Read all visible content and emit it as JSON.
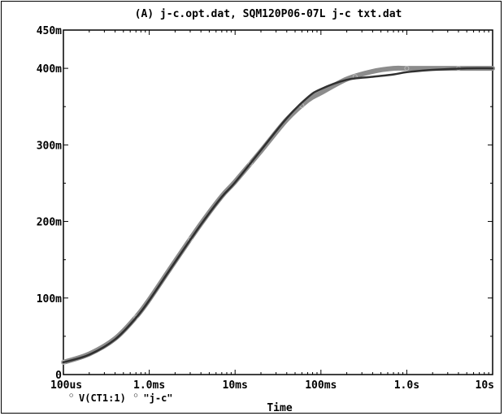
{
  "chart_data": {
    "type": "line",
    "title": "(A) j-c.opt.dat, SQM120P06-07L j-c txt.dat",
    "xlabel": "Time",
    "ylabel": "",
    "x_scale": "log",
    "x_ticks": [
      "100us",
      "1.0ms",
      "10ms",
      "100ms",
      "1.0s",
      "10s"
    ],
    "y_ticks": [
      "0",
      "100m",
      "200m",
      "300m",
      "400m",
      "450m"
    ],
    "xlim": [
      0.0001,
      10
    ],
    "ylim": [
      0,
      0.45
    ],
    "grid": false,
    "series": [
      {
        "name": "V(CT1:1)",
        "legend_marker": "◦",
        "color": "#8c8c8c",
        "x": [
          0.0001,
          0.0002,
          0.0004,
          0.0007,
          0.001,
          0.002,
          0.004,
          0.007,
          0.01,
          0.02,
          0.04,
          0.07,
          0.1,
          0.2,
          0.4,
          0.7,
          1.0,
          2.0,
          5.0,
          10.0
        ],
        "values": [
          0.016,
          0.027,
          0.047,
          0.075,
          0.098,
          0.148,
          0.197,
          0.233,
          0.252,
          0.292,
          0.333,
          0.358,
          0.368,
          0.386,
          0.396,
          0.4,
          0.4,
          0.4,
          0.4,
          0.4
        ]
      },
      {
        "name": "\"j-c\"",
        "legend_marker": "◦",
        "color": "#303030",
        "x": [
          0.0001,
          0.0002,
          0.0004,
          0.0007,
          0.001,
          0.002,
          0.004,
          0.007,
          0.01,
          0.02,
          0.04,
          0.07,
          0.1,
          0.2,
          0.4,
          0.7,
          1.0,
          2.0,
          5.0,
          10.0
        ],
        "values": [
          0.016,
          0.026,
          0.046,
          0.074,
          0.097,
          0.147,
          0.196,
          0.232,
          0.251,
          0.293,
          0.335,
          0.362,
          0.373,
          0.385,
          0.389,
          0.392,
          0.395,
          0.398,
          0.4,
          0.4
        ]
      }
    ]
  }
}
